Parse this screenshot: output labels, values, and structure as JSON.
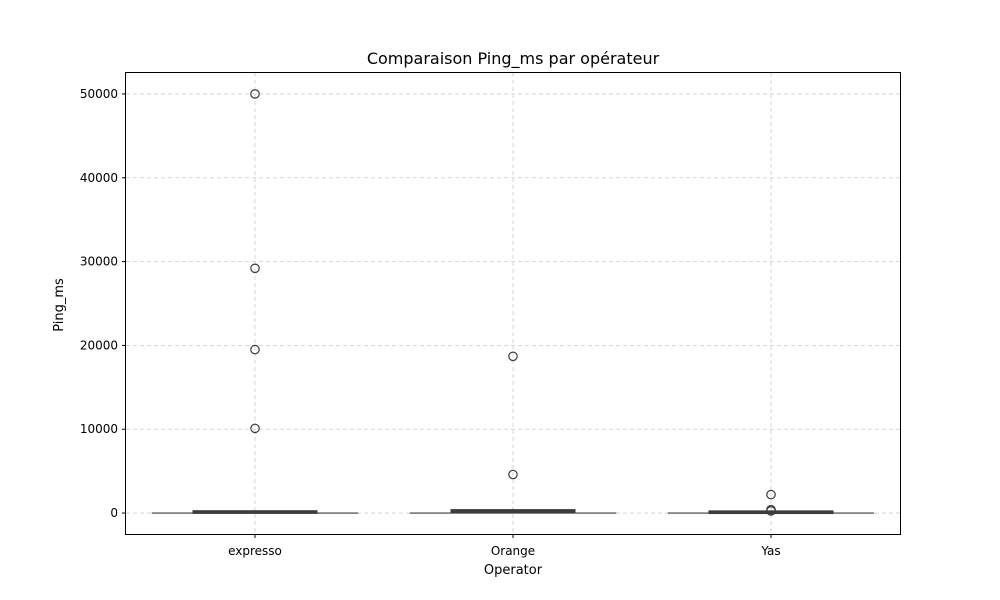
{
  "chart_data": {
    "type": "boxplot",
    "title": "Comparaison Ping_ms par opérateur",
    "xlabel": "Operator",
    "ylabel": "Ping_ms",
    "ylim": [
      -2500,
      52500
    ],
    "yticks": [
      0,
      10000,
      20000,
      30000,
      40000,
      50000
    ],
    "grid": true,
    "categories": [
      "expresso",
      "Orange",
      "Yas"
    ],
    "series": [
      {
        "name": "expresso",
        "whisker_low": 0,
        "q1": 30,
        "median": 60,
        "q3": 150,
        "whisker_high": 300,
        "outliers": [
          50000,
          29200,
          19500,
          10100
        ]
      },
      {
        "name": "Orange",
        "whisker_low": 0,
        "q1": 40,
        "median": 120,
        "q3": 280,
        "whisker_high": 500,
        "outliers": [
          18700,
          4600
        ]
      },
      {
        "name": "Yas",
        "whisker_low": 0,
        "q1": 20,
        "median": 60,
        "q3": 130,
        "whisker_high": 250,
        "outliers": [
          2200,
          400,
          250
        ]
      }
    ],
    "colors": {
      "box_line": "#3d3d3d",
      "grid": "#cccccc",
      "axes": "#000000",
      "background": "#ffffff"
    }
  }
}
